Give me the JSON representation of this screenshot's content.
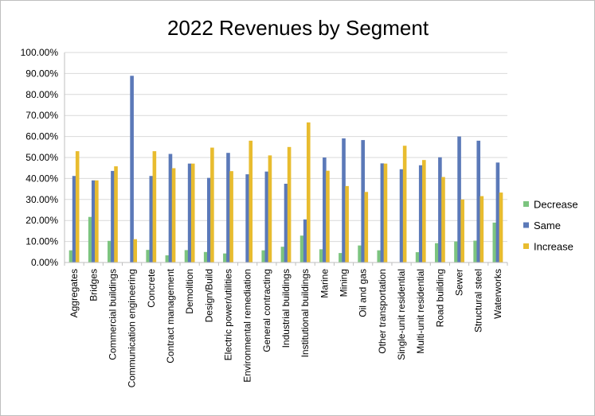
{
  "chart_data": {
    "type": "bar",
    "title": "2022 Revenues by Segment",
    "xlabel": "",
    "ylabel": "",
    "ylim": [
      0,
      100
    ],
    "y_ticks": [
      "0.00%",
      "10.00%",
      "20.00%",
      "30.00%",
      "40.00%",
      "50.00%",
      "60.00%",
      "70.00%",
      "80.00%",
      "90.00%",
      "100.00%"
    ],
    "grid": true,
    "legend_position": "right",
    "categories": [
      "Aggregates",
      "Bridges",
      "Commercial buildings",
      "Communication engineering",
      "Concrete",
      "Contract management",
      "Demolition",
      "Design/Build",
      "Electric power/utilities",
      "Environmental remediation",
      "General contracting",
      "Industrial buildings",
      "Institutional buildings",
      "Marine",
      "Mining",
      "Oil and gas",
      "Other transportation",
      "Single-unit residential",
      "Multi-unit residential",
      "Road building",
      "Sewer",
      "Structural steel",
      "Waterworks"
    ],
    "series": [
      {
        "name": "Decrease",
        "color": "#7cc47f",
        "values": [
          5.8,
          21.7,
          10.3,
          0,
          6.0,
          3.4,
          5.9,
          5.0,
          4.3,
          0,
          5.8,
          7.5,
          12.8,
          6.3,
          4.5,
          8.1,
          5.8,
          0,
          4.9,
          9.2,
          10.0,
          10.4,
          19.0
        ]
      },
      {
        "name": "Same",
        "color": "#5b79b8",
        "values": [
          41.2,
          39.1,
          43.6,
          88.9,
          41.2,
          51.7,
          47.1,
          40.3,
          52.2,
          42.0,
          43.3,
          37.5,
          20.5,
          50.0,
          59.1,
          58.3,
          47.2,
          44.4,
          46.3,
          50.1,
          60.0,
          58.0,
          47.6
        ]
      },
      {
        "name": "Increase",
        "color": "#e8bc2f",
        "values": [
          53.0,
          39.1,
          45.8,
          11.1,
          53.0,
          44.9,
          47.1,
          54.7,
          43.5,
          58.0,
          51.0,
          55.0,
          66.7,
          43.7,
          36.4,
          33.6,
          47.1,
          55.6,
          48.8,
          40.7,
          30.0,
          31.6,
          33.3
        ]
      }
    ]
  }
}
